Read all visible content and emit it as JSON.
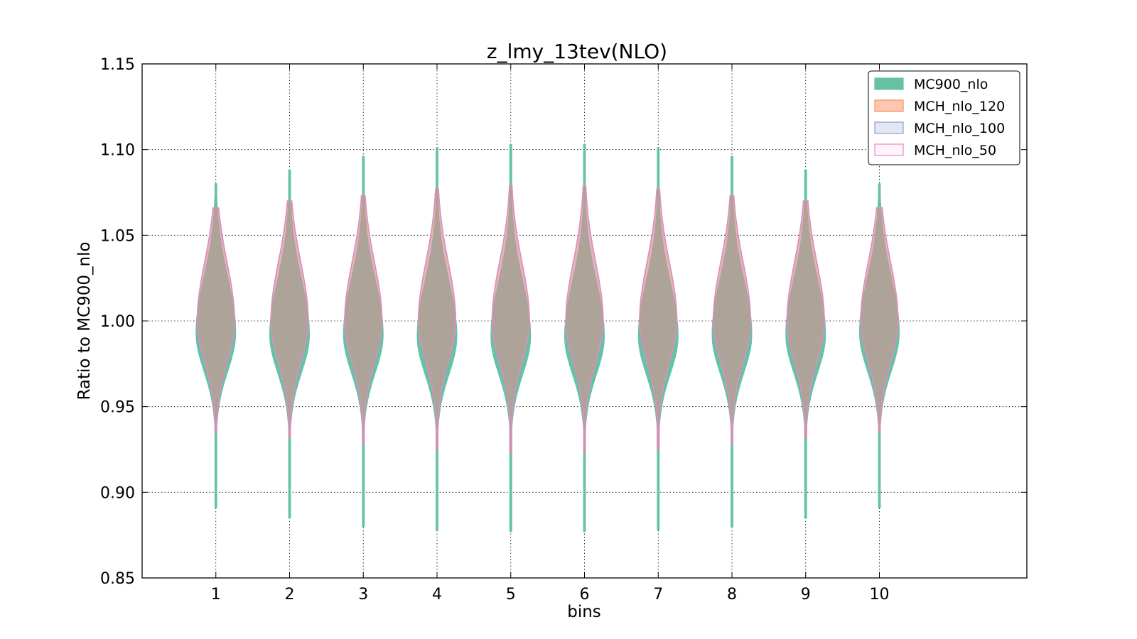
{
  "chart_data": {
    "type": "violin",
    "title": "z_lmy_13tev(NLO)",
    "xlabel": "bins",
    "ylabel": "Ratio to MC900_nlo",
    "categories": [
      "1",
      "2",
      "3",
      "4",
      "5",
      "6",
      "7",
      "8",
      "9",
      "10"
    ],
    "xlim": [
      0,
      12
    ],
    "ylim": [
      0.85,
      1.15
    ],
    "yticks": [
      "0.85",
      "0.90",
      "0.95",
      "1.00",
      "1.05",
      "1.10",
      "1.15"
    ],
    "grid": true,
    "legend_position": "top-right",
    "series": [
      {
        "name": "MC900_nlo",
        "color": "#66c2a5",
        "edge": "#66c2a5",
        "alpha": 1.0,
        "min": [
          0.891,
          0.885,
          0.88,
          0.878,
          0.877,
          0.877,
          0.878,
          0.88,
          0.885,
          0.891
        ],
        "max": [
          1.08,
          1.088,
          1.096,
          1.101,
          1.103,
          1.103,
          1.101,
          1.096,
          1.088,
          1.08
        ],
        "center": [
          0.993,
          0.992,
          0.992,
          0.991,
          0.991,
          0.991,
          0.991,
          0.992,
          0.992,
          0.993
        ]
      },
      {
        "name": "MCH_nlo_120",
        "color": "#fc8d62",
        "edge": "#fc8d62",
        "alpha": 0.5,
        "min": [
          0.935,
          0.932,
          0.928,
          0.925,
          0.923,
          0.923,
          0.925,
          0.928,
          0.932,
          0.935
        ],
        "max": [
          1.066,
          1.07,
          1.073,
          1.077,
          1.079,
          1.079,
          1.077,
          1.073,
          1.07,
          1.066
        ],
        "center": [
          1.0,
          1.0,
          1.0,
          1.0,
          1.0,
          1.0,
          1.0,
          1.0,
          1.0,
          1.0
        ]
      },
      {
        "name": "MCH_nlo_100",
        "color": "#8da0cb",
        "edge": "#8da0cb",
        "alpha": 0.25,
        "min": [
          0.935,
          0.932,
          0.928,
          0.925,
          0.923,
          0.923,
          0.925,
          0.928,
          0.932,
          0.935
        ],
        "max": [
          1.066,
          1.07,
          1.073,
          1.077,
          1.079,
          1.079,
          1.077,
          1.073,
          1.07,
          1.066
        ],
        "center": [
          1.0,
          1.0,
          1.0,
          1.0,
          1.0,
          1.0,
          1.0,
          1.0,
          1.0,
          1.0
        ]
      },
      {
        "name": "MCH_nlo_50",
        "color": "#e78ac3",
        "edge": "#e78ac3",
        "alpha": 0.1,
        "min": [
          0.935,
          0.932,
          0.928,
          0.925,
          0.923,
          0.923,
          0.925,
          0.928,
          0.932,
          0.935
        ],
        "max": [
          1.066,
          1.07,
          1.073,
          1.077,
          1.079,
          1.079,
          1.077,
          1.073,
          1.07,
          1.066
        ],
        "center": [
          1.0,
          1.0,
          1.0,
          1.0,
          1.0,
          1.0,
          1.0,
          1.0,
          1.0,
          1.0
        ]
      }
    ]
  }
}
